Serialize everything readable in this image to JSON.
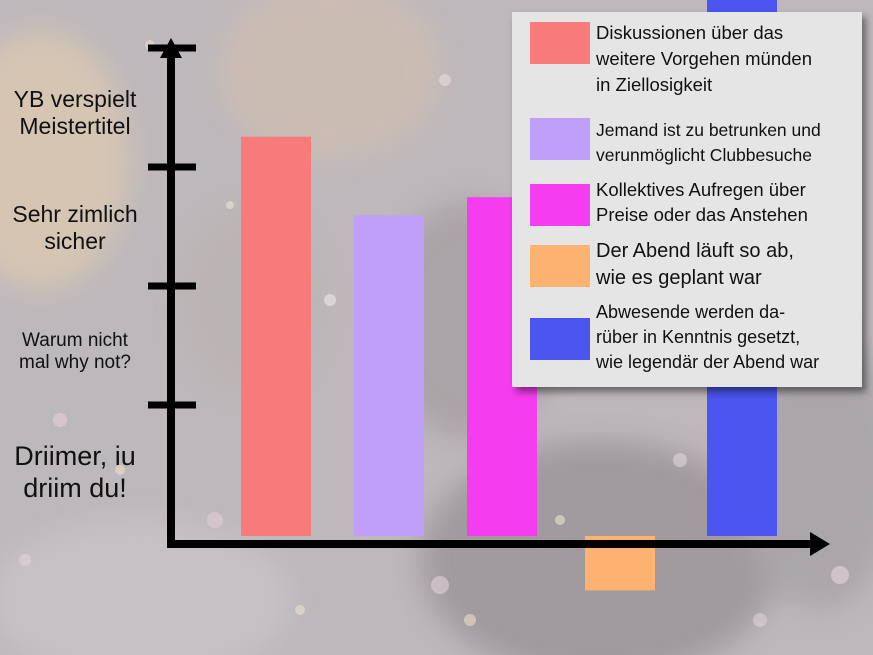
{
  "chart_data": {
    "type": "bar",
    "title": "",
    "xlabel": "",
    "ylabel": "",
    "y_tick_values": [
      1,
      2,
      3,
      4
    ],
    "y_tick_labels": [
      [
        "Driimer, iu",
        "driim du!"
      ],
      [
        "Warum nicht",
        "mal why not?"
      ],
      [
        "Sehr zimlich",
        "sicher"
      ],
      [
        "YB verspielt",
        "Meistertitel"
      ]
    ],
    "ylim": [
      0,
      4.5
    ],
    "grid": false,
    "legend_position": "top-right",
    "series": [
      {
        "name": "Diskussionen über das weitere Vorgehen münden in Ziellosigkeit",
        "color": "#f97a7b",
        "value": 3.3
      },
      {
        "name": "Jemand ist zu betrunken und verunmöglicht Clubbesuche",
        "color": "#bf9ff9",
        "value": 2.65
      },
      {
        "name": "Kollektives Aufregen über Preise oder das Anstehen",
        "color": "#f53df0",
        "value": 2.8
      },
      {
        "name": "Der Abend läuft so ab, wie es geplant war",
        "color": "#fcb270",
        "value": -0.45
      },
      {
        "name": "Abwesende werden darüber in Kenntnis gesetzt, wie legendär der Abend war",
        "color": "#4b55f0",
        "value": 4.6
      }
    ]
  },
  "legend": {
    "items": [
      {
        "lines": [
          "Diskussionen über das",
          "weitere Vorgehen münden",
          "in Ziellosigkeit"
        ]
      },
      {
        "lines": [
          "Jemand ist zu betrunken und",
          "verunmöglicht Clubbesuche"
        ]
      },
      {
        "lines": [
          "Kollektives Aufregen über",
          "Preise oder das Anstehen"
        ]
      },
      {
        "lines": [
          "Der Abend läuft so ab,",
          "wie es geplant war"
        ]
      },
      {
        "lines": [
          "Abwesende werden da-",
          "rüber in Kenntnis gesetzt,",
          "wie legendär der Abend war"
        ]
      }
    ]
  }
}
